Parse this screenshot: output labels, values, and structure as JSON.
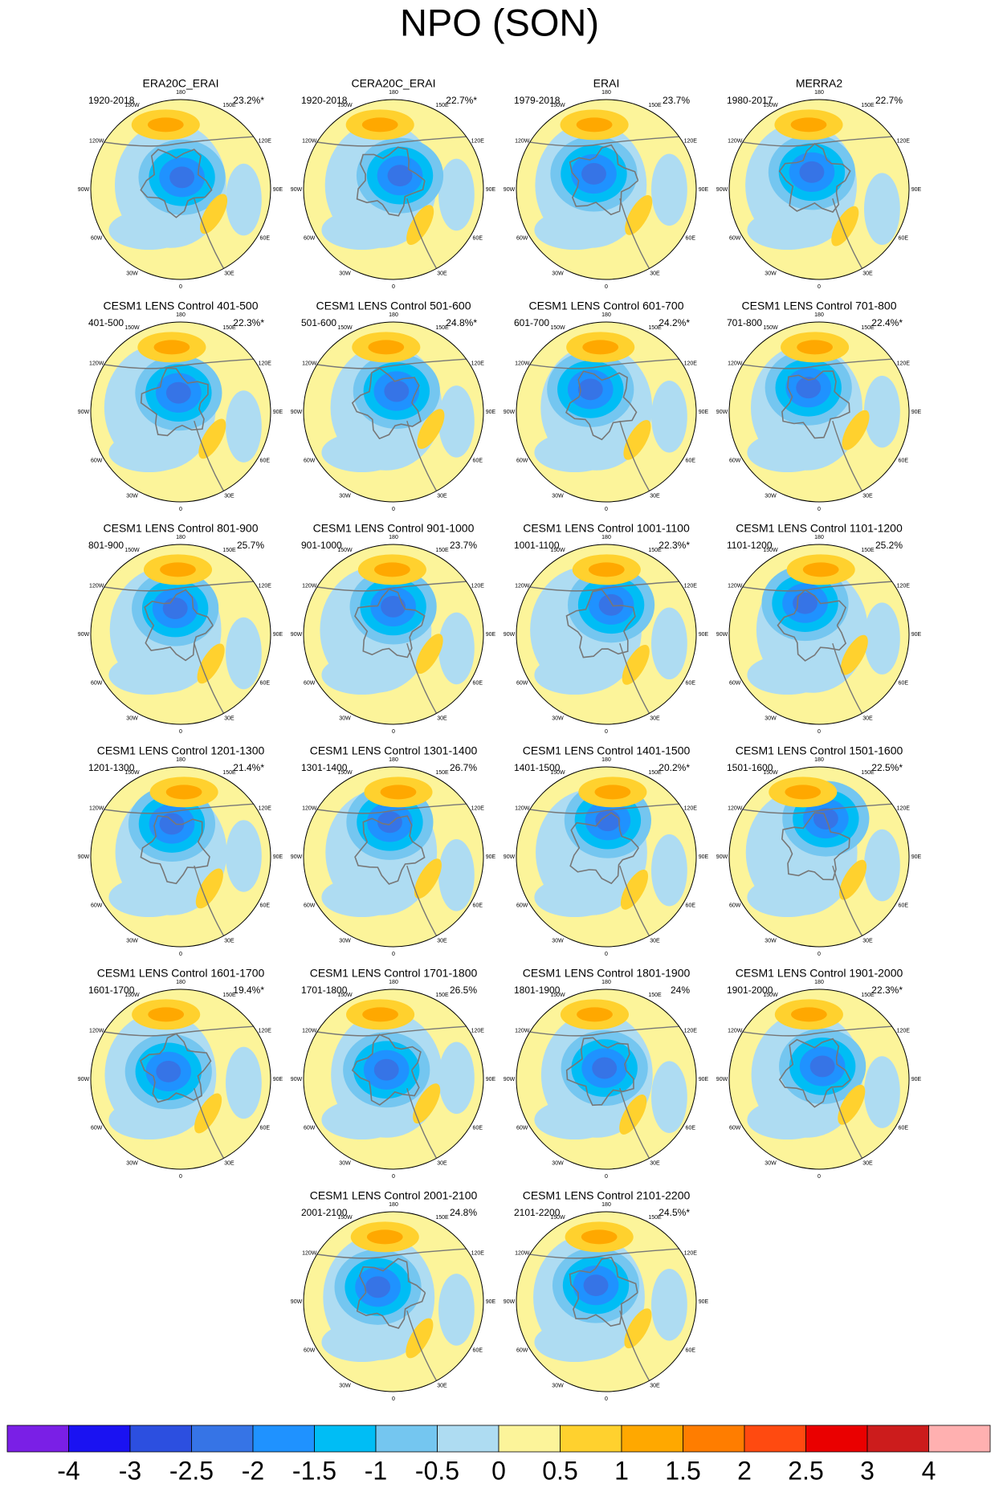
{
  "title": "NPO (SON)",
  "longitude_labels": [
    "180",
    "150E",
    "120E",
    "90E",
    "60E",
    "30E",
    "0",
    "30W",
    "60W",
    "90W",
    "120W",
    "150W"
  ],
  "panels": [
    {
      "title": "ERA20C_ERAI",
      "period": "1920-2018",
      "pct": "23.2%*"
    },
    {
      "title": "CERA20C_ERAI",
      "period": "1920-2018",
      "pct": "22.7%*"
    },
    {
      "title": "ERAI",
      "period": "1979-2018",
      "pct": "23.7%"
    },
    {
      "title": "MERRA2",
      "period": "1980-2017",
      "pct": "22.7%"
    },
    {
      "title": "CESM1 LENS Control 401-500",
      "period": "401-500",
      "pct": "22.3%*"
    },
    {
      "title": "CESM1 LENS Control 501-600",
      "period": "501-600",
      "pct": "24.8%*"
    },
    {
      "title": "CESM1 LENS Control 601-700",
      "period": "601-700",
      "pct": "24.2%*"
    },
    {
      "title": "CESM1 LENS Control 701-800",
      "period": "701-800",
      "pct": "22.4%*"
    },
    {
      "title": "CESM1 LENS Control 801-900",
      "period": "801-900",
      "pct": "25.7%"
    },
    {
      "title": "CESM1 LENS Control 901-1000",
      "period": "901-1000",
      "pct": "23.7%"
    },
    {
      "title": "CESM1 LENS Control 1001-1100",
      "period": "1001-1100",
      "pct": "22.3%*"
    },
    {
      "title": "CESM1 LENS Control 1101-1200",
      "period": "1101-1200",
      "pct": "25.2%"
    },
    {
      "title": "CESM1 LENS Control 1201-1300",
      "period": "1201-1300",
      "pct": "21.4%*"
    },
    {
      "title": "CESM1 LENS Control 1301-1400",
      "period": "1301-1400",
      "pct": "26.7%"
    },
    {
      "title": "CESM1 LENS Control 1401-1500",
      "period": "1401-1500",
      "pct": "20.2%*"
    },
    {
      "title": "CESM1 LENS Control 1501-1600",
      "period": "1501-1600",
      "pct": "22.5%*"
    },
    {
      "title": "CESM1 LENS Control 1601-1700",
      "period": "1601-1700",
      "pct": "19.4%*"
    },
    {
      "title": "CESM1 LENS Control 1701-1800",
      "period": "1701-1800",
      "pct": "26.5%"
    },
    {
      "title": "CESM1 LENS Control 1801-1900",
      "period": "1801-1900",
      "pct": "24%"
    },
    {
      "title": "CESM1 LENS Control 1901-2000",
      "period": "1901-2000",
      "pct": "22.3%*"
    },
    {
      "title": "CESM1 LENS Control 2001-2100",
      "period": "2001-2100",
      "pct": "24.8%"
    },
    {
      "title": "CESM1 LENS Control 2101-2200",
      "period": "2101-2200",
      "pct": "24.5%*"
    }
  ],
  "colorbar": {
    "colors": [
      "#7a1fe6",
      "#1a12f2",
      "#2c4fe0",
      "#3674e6",
      "#1f92ff",
      "#00bdf5",
      "#74c6f0",
      "#aedcf2",
      "#fcf49a",
      "#ffd12e",
      "#ffa800",
      "#ff7d00",
      "#ff4a10",
      "#ea0000",
      "#cc1c1c",
      "#ffb0b0"
    ],
    "labels": [
      -4,
      -3,
      -2.5,
      -2,
      -1.5,
      -1,
      -0.5,
      0,
      0.5,
      1,
      1.5,
      2,
      2.5,
      3,
      4
    ]
  }
}
